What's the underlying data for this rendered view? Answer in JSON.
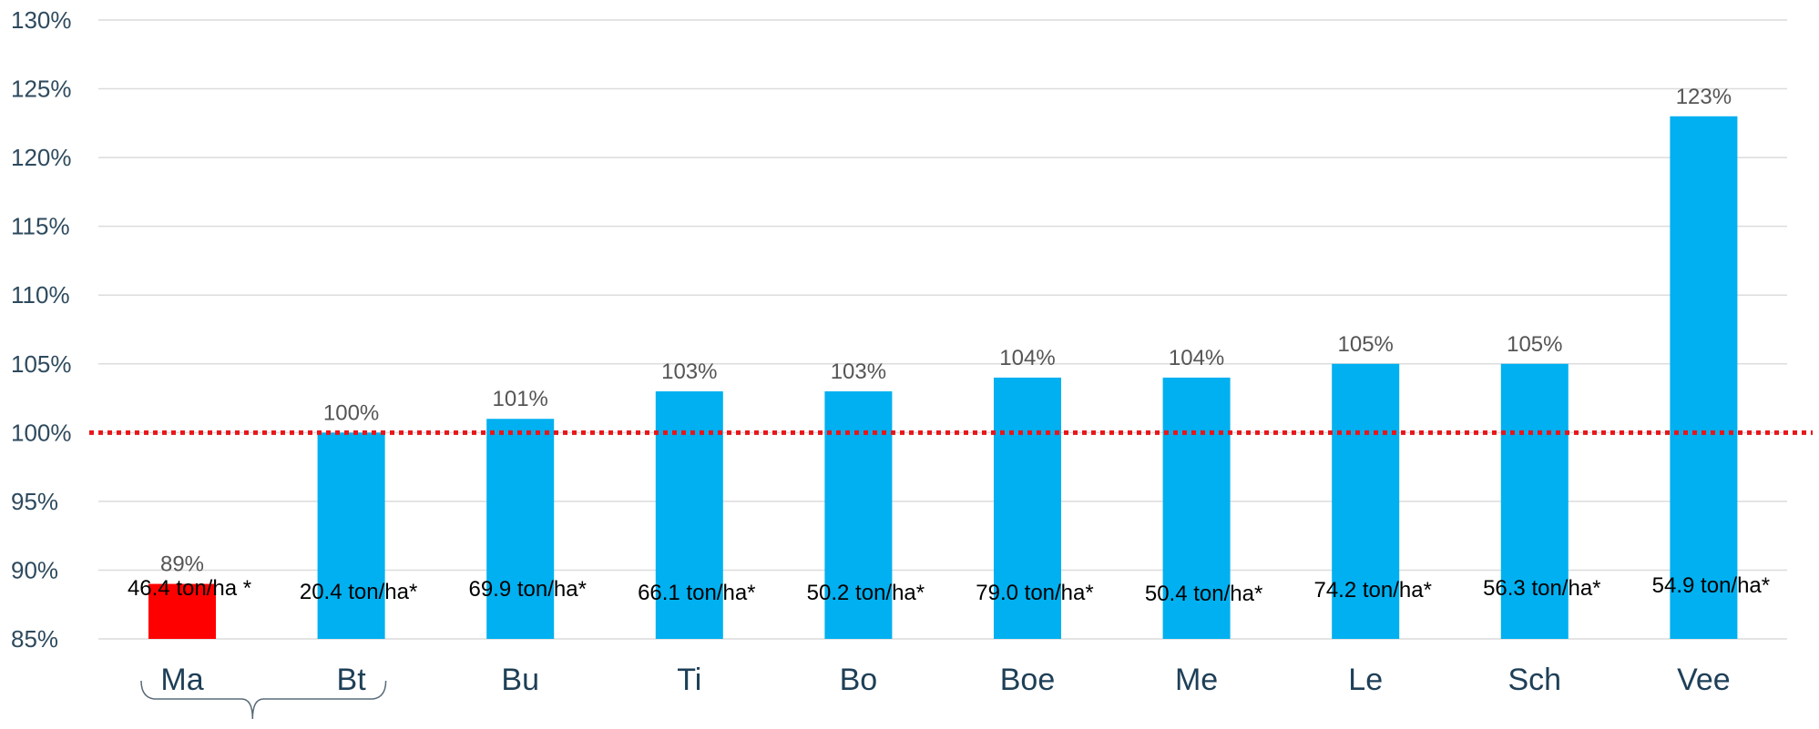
{
  "chart_data": {
    "type": "bar",
    "title": "",
    "xlabel": "",
    "ylabel": "",
    "ylim": [
      85,
      130
    ],
    "yticks": [
      "85%",
      "90%",
      "95%",
      "100%",
      "105%",
      "110%",
      "115%",
      "120%",
      "125%",
      "130%"
    ],
    "ytick_values": [
      85,
      90,
      95,
      100,
      105,
      110,
      115,
      120,
      125,
      130
    ],
    "grid": true,
    "reference_line": {
      "value": 100,
      "style": "dotted",
      "color": "#e8161b"
    },
    "categories": [
      "Ma",
      "Bt",
      "Bu",
      "Ti",
      "Bo",
      "Boe",
      "Me",
      "Le",
      "Sch",
      "Vee"
    ],
    "values": [
      89,
      100,
      101,
      103,
      103,
      104,
      104,
      105,
      105,
      123
    ],
    "value_labels": [
      "89%",
      "100%",
      "101%",
      "103%",
      "103%",
      "104%",
      "104%",
      "105%",
      "105%",
      "123%"
    ],
    "yield_labels": [
      "46.4 ton/ha *",
      "20.4 ton/ha*",
      "69.9 ton/ha*",
      "66.1 ton/ha*",
      "50.2 ton/ha*",
      "79.0 ton/ha*",
      "50.4 ton/ha*",
      "74.2 ton/ha*",
      "56.3 ton/ha*",
      "54.9 ton/ha*"
    ],
    "bar_colors": [
      "#ff0000",
      "#00b0f0",
      "#00b0f0",
      "#00b0f0",
      "#00b0f0",
      "#00b0f0",
      "#00b0f0",
      "#00b0f0",
      "#00b0f0",
      "#00b0f0"
    ],
    "bracket_groups": [
      [
        "Ma",
        "Bt"
      ]
    ],
    "legend": null
  }
}
